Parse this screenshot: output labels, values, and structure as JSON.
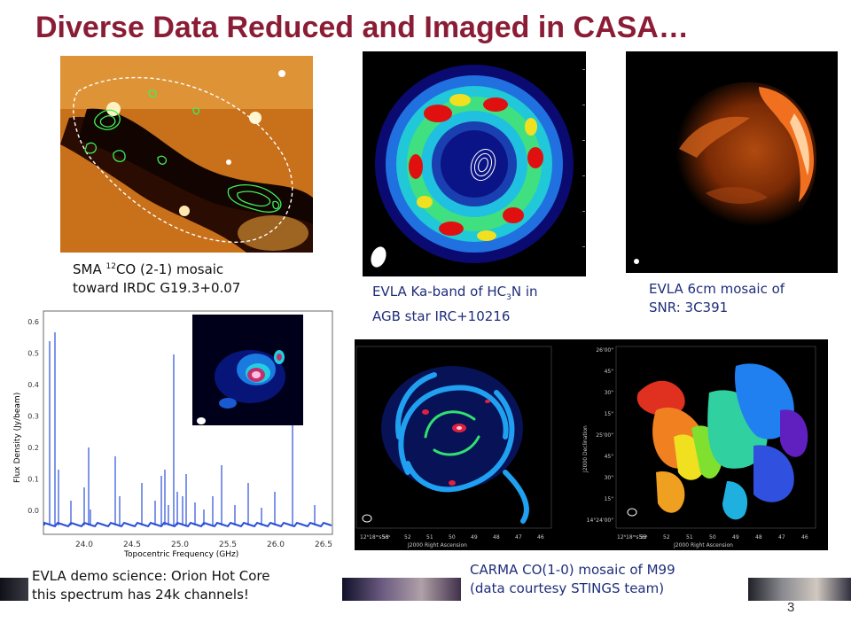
{
  "title": "Diverse Data Reduced and Imaged in CASA…",
  "captions": {
    "sma": [
      "SMA ",
      "12",
      "CO (2-1) mosaic",
      "toward IRDC G19.3+0.07"
    ],
    "ring": [
      "EVLA Ka-band of HC",
      "3",
      "N in",
      "AGB star IRC+10216"
    ],
    "snr": [
      "EVLA 6cm mosaic of",
      "SNR: 3C391"
    ],
    "orion": [
      "EVLA demo science: Orion Hot Core",
      "this spectrum has 24k channels!"
    ],
    "carma": [
      "CARMA CO(1-0) mosaic of M99",
      "(data courtesy STINGS team)"
    ]
  },
  "spectrum": {
    "ylabel": "Flux Density (Jy/beam)",
    "xlabel": "Topocentric Frequency (GHz)",
    "yticks": [
      "0.6",
      "0.5",
      "0.4",
      "0.3",
      "0.2",
      "0.1",
      "0.0"
    ],
    "xticks": [
      "24.0",
      "24.5",
      "25.0",
      "25.5",
      "26.0",
      "26.5"
    ]
  },
  "carma_axes": {
    "left_xticks": [
      "12ʰ18ᵐs56ˢ",
      "53",
      "52",
      "51",
      "50",
      "49",
      "48",
      "47",
      "46"
    ],
    "left_xlabel": "J2000 Right Ascension",
    "right_yticks": [
      "26'00\"",
      "45\"",
      "30\"",
      "15\"",
      "25'00\"",
      "45\"",
      "30\"",
      "15\"",
      "14°24'00\""
    ],
    "right_ylabel": "J2000 Declination",
    "right_xticks": [
      "12ʰ18ᵐs56ˢ",
      "53",
      "52",
      "51",
      "50",
      "49",
      "48",
      "47",
      "46"
    ],
    "right_xlabel": "J2000 Right Ascension"
  },
  "page_number": "3"
}
